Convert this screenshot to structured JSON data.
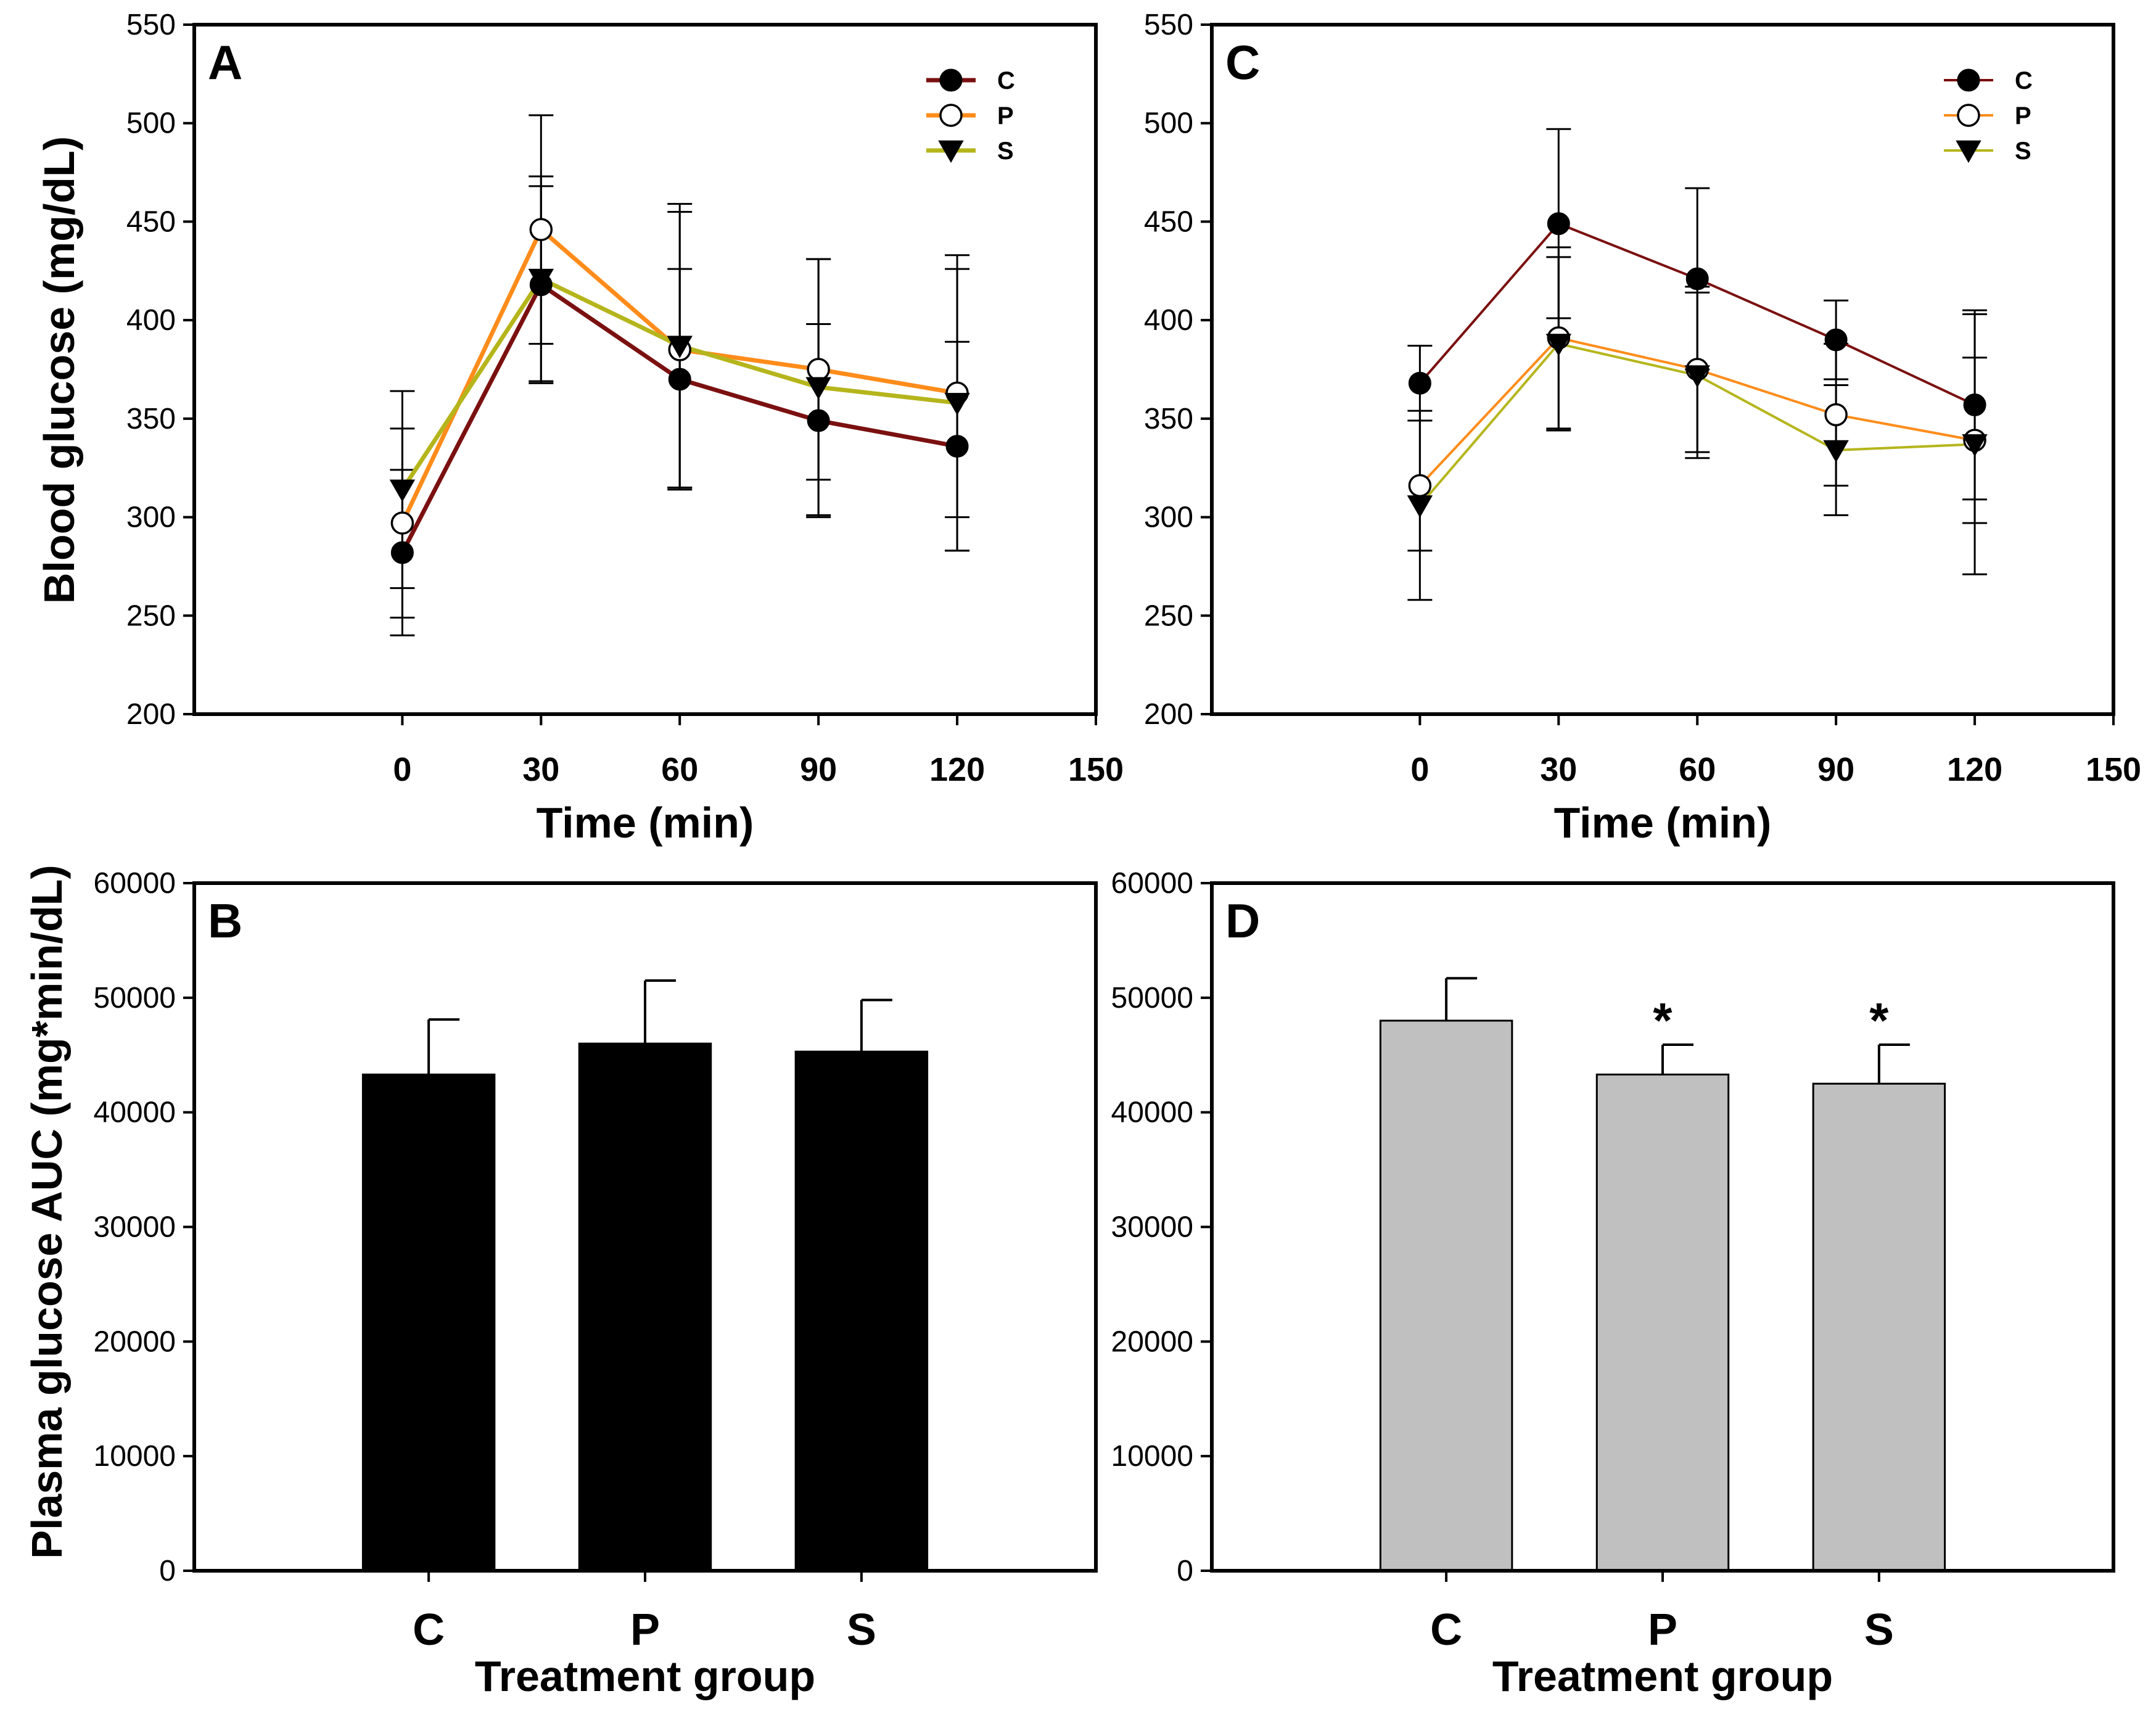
{
  "colors": {
    "C": "#7b1010",
    "P": "#ff8c1a",
    "S": "#b5b51c",
    "bar_B": "#000000",
    "bar_D": "#c0c0c0"
  },
  "shared": {
    "y_label_top": "Blood glucose (mg/dL)",
    "y_label_bottom": "Plasma glucose AUC (mg*min/dL)"
  },
  "chart_data": [
    {
      "id": "A",
      "type": "line",
      "panel_letter": "A",
      "xlabel": "Time (min)",
      "xlim": [
        -45,
        150
      ],
      "xticks": [
        0,
        30,
        60,
        90,
        120,
        150
      ],
      "ylim": [
        200,
        550
      ],
      "yticks": [
        200,
        250,
        300,
        350,
        400,
        450,
        500,
        550
      ],
      "x": [
        0,
        30,
        60,
        90,
        120
      ],
      "series": [
        {
          "name": "C",
          "marker": "filled-circle",
          "values": [
            282,
            418,
            370,
            349,
            336
          ],
          "err": [
            42,
            50,
            56,
            49,
            53
          ]
        },
        {
          "name": "P",
          "marker": "open-circle",
          "values": [
            297,
            446,
            385,
            375,
            363
          ],
          "err": [
            48,
            58,
            70,
            56,
            63
          ]
        },
        {
          "name": "S",
          "marker": "filled-triangle",
          "values": [
            314,
            421,
            387,
            366,
            358
          ],
          "err": [
            50,
            52,
            72,
            65,
            75
          ]
        }
      ],
      "legend_position": "top-right"
    },
    {
      "id": "C",
      "type": "line",
      "panel_letter": "C",
      "xlabel": "Time (min)",
      "xlim": [
        -45,
        150
      ],
      "xticks": [
        0,
        30,
        60,
        90,
        120,
        150
      ],
      "ylim": [
        200,
        550
      ],
      "yticks": [
        200,
        250,
        300,
        350,
        400,
        450,
        500,
        550
      ],
      "x": [
        0,
        30,
        60,
        90,
        120
      ],
      "series": [
        {
          "name": "C",
          "marker": "filled-circle",
          "values": [
            368,
            449,
            421,
            390,
            357
          ],
          "err": [
            19,
            48,
            46,
            20,
            48
          ]
        },
        {
          "name": "P",
          "marker": "open-circle",
          "values": [
            316,
            391,
            375,
            352,
            339
          ],
          "err": [
            33,
            46,
            42,
            36,
            42
          ]
        },
        {
          "name": "S",
          "marker": "filled-triangle",
          "values": [
            306,
            388,
            372,
            334,
            337
          ],
          "err": [
            48,
            44,
            42,
            33,
            66
          ]
        }
      ],
      "legend_position": "top-right"
    },
    {
      "id": "B",
      "type": "bar",
      "panel_letter": "B",
      "xlabel": "Treatment group",
      "categories": [
        "C",
        "P",
        "S"
      ],
      "values": [
        43300,
        46000,
        45300
      ],
      "err": [
        4800,
        5500,
        4500
      ],
      "ylim": [
        0,
        60000
      ],
      "yticks": [
        0,
        10000,
        20000,
        30000,
        40000,
        50000,
        60000
      ],
      "significance": [
        "",
        "",
        ""
      ]
    },
    {
      "id": "D",
      "type": "bar",
      "panel_letter": "D",
      "xlabel": "Treatment group",
      "categories": [
        "C",
        "P",
        "S"
      ],
      "values": [
        48000,
        43300,
        42500
      ],
      "err": [
        3700,
        2600,
        3400
      ],
      "ylim": [
        0,
        60000
      ],
      "yticks": [
        0,
        10000,
        20000,
        30000,
        40000,
        50000,
        60000
      ],
      "significance": [
        "",
        "*",
        "*"
      ]
    }
  ]
}
